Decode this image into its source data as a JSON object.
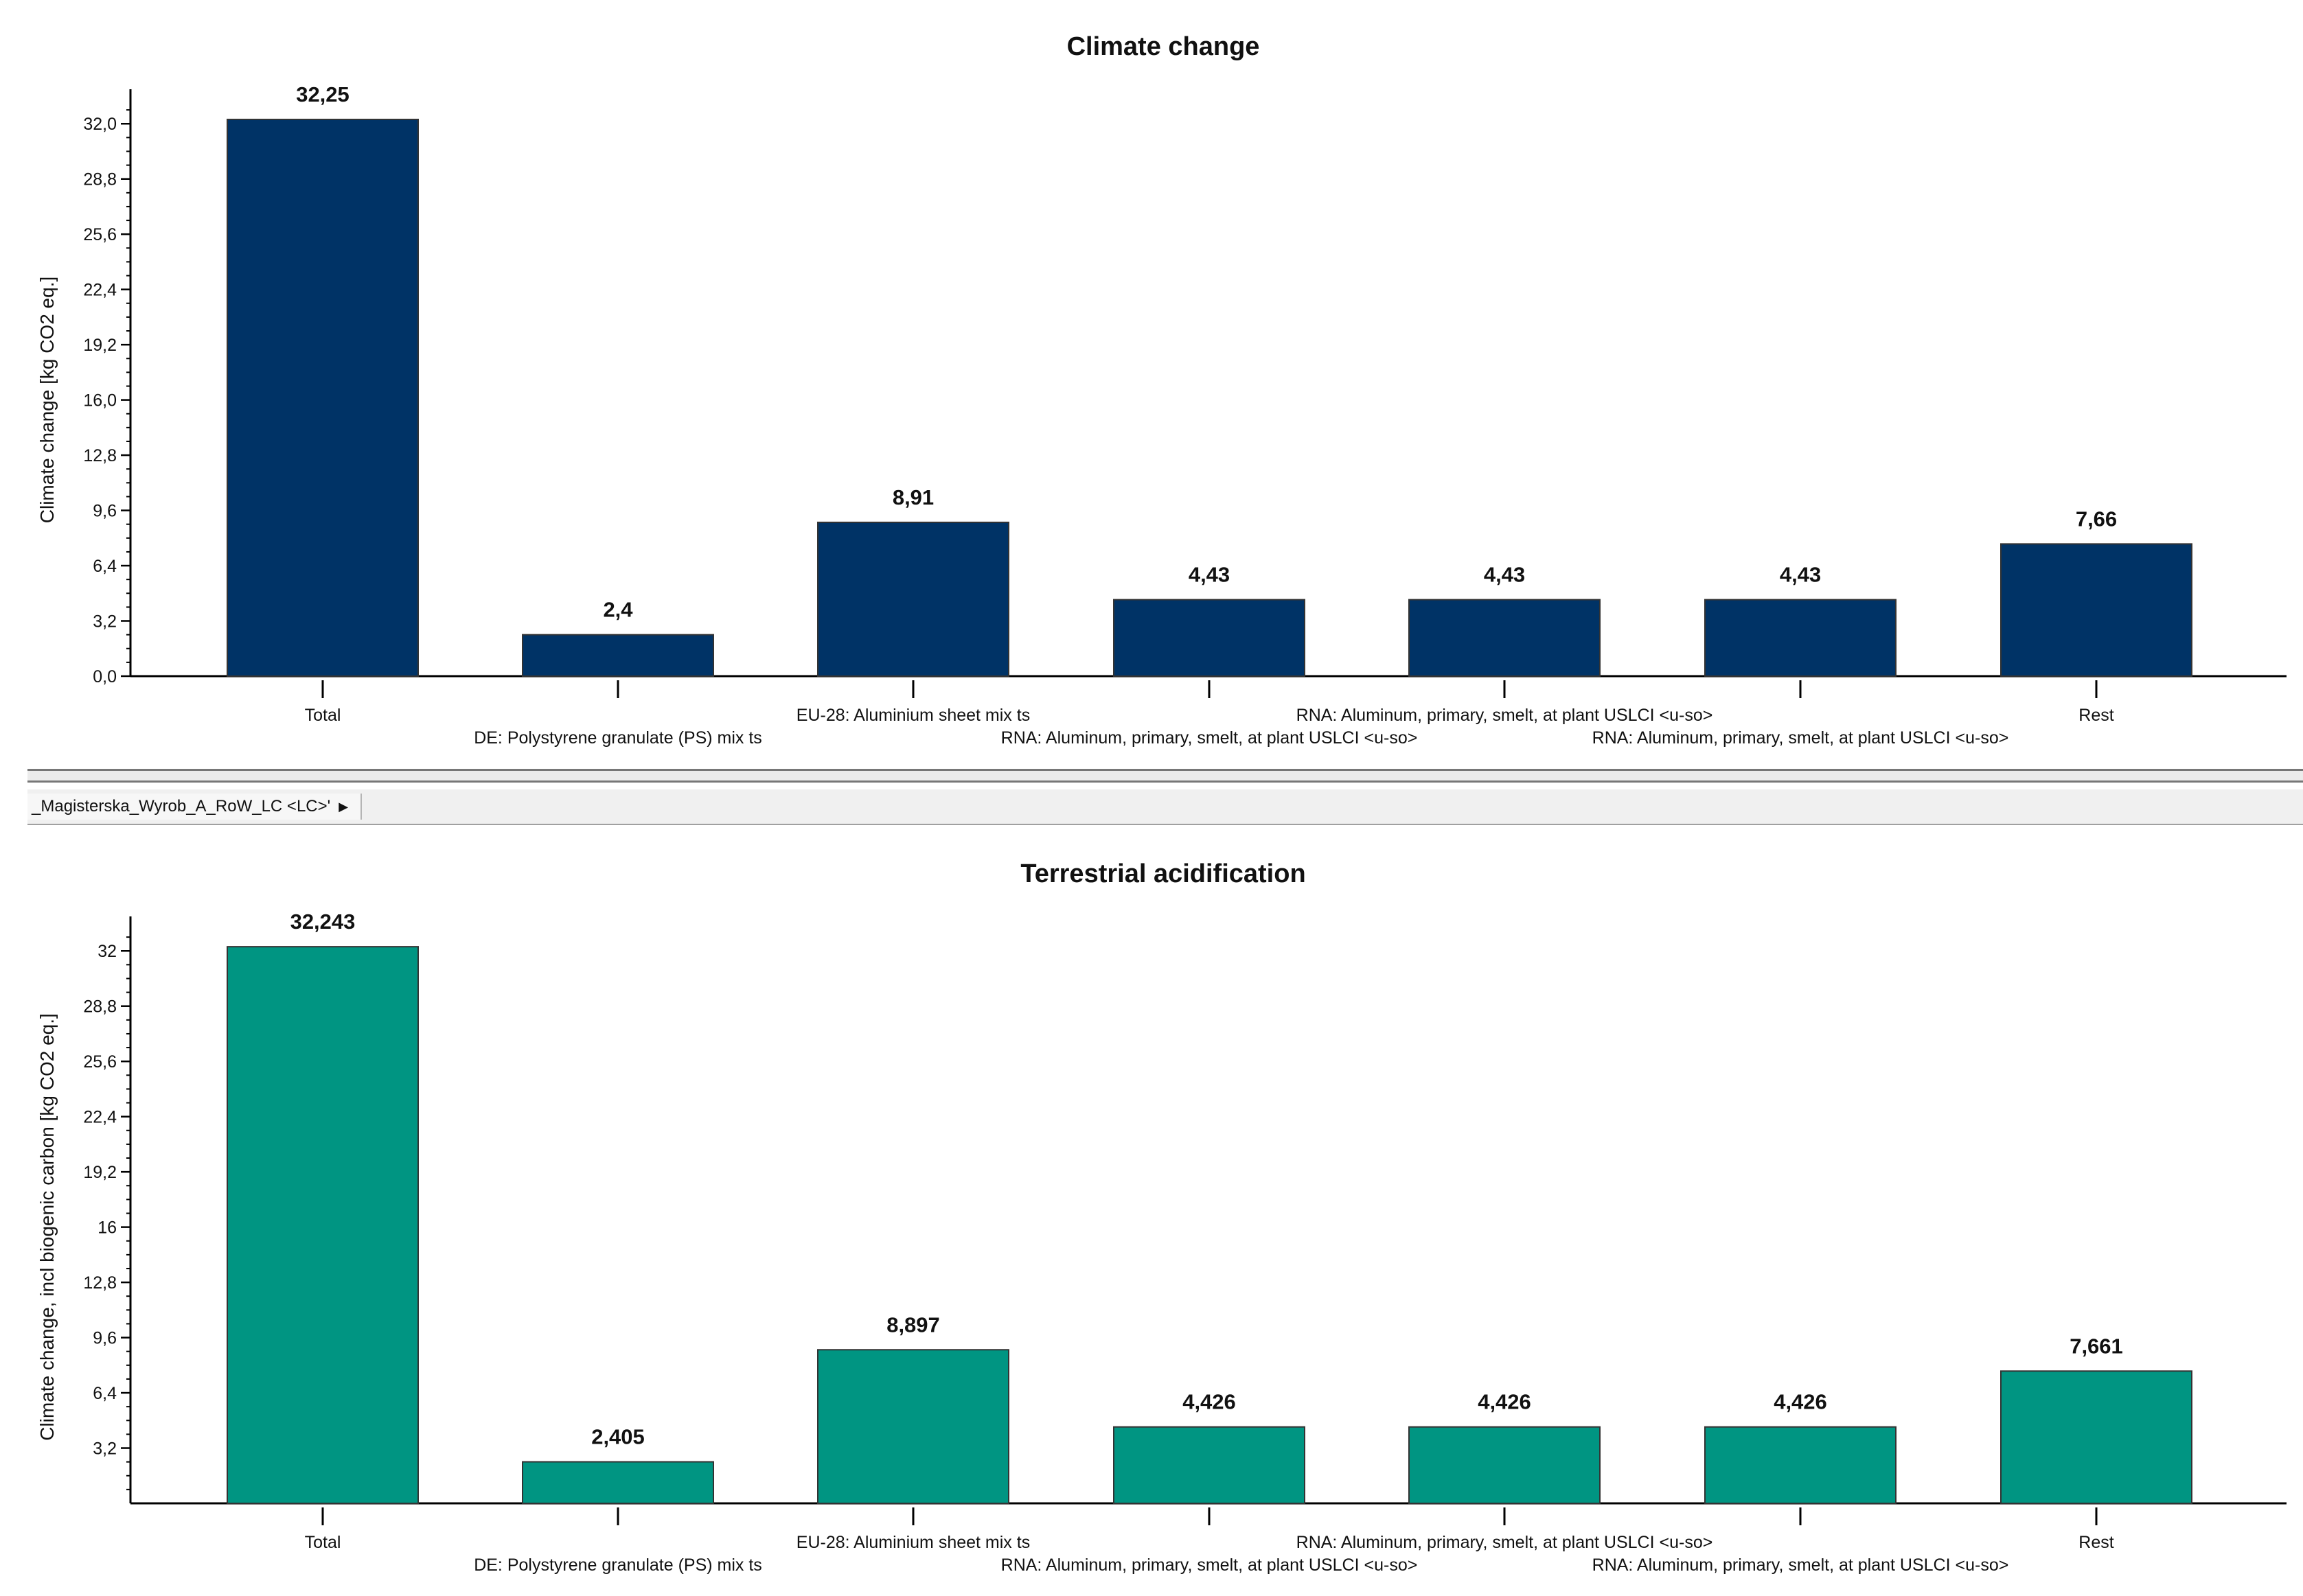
{
  "tab": {
    "label": "_Magisterska_Wyrob_A_RoW_LC <LC>'",
    "arrow_icon": "triangle-right-icon"
  },
  "chart_data": [
    {
      "type": "bar",
      "title": "Climate change",
      "ylabel": "Climate change [kg CO2 eq.]",
      "xlabel": "",
      "color": "#003366",
      "ylim": [
        0,
        33.6
      ],
      "yticks": [
        0,
        3.2,
        6.4,
        9.6,
        12.8,
        16,
        19.2,
        22.4,
        25.6,
        28.8,
        32
      ],
      "ytick_labels": [
        "0,0",
        "3,2",
        "6,4",
        "9,6",
        "12,8",
        "16,0",
        "19,2",
        "22,4",
        "25,6",
        "28,8",
        "32,0"
      ],
      "categories": [
        "Total",
        "DE: Polystyrene granulate (PS) mix ts",
        "EU-28: Aluminium sheet mix ts",
        "RNA: Aluminum, primary, smelt, at plant USLCI <u-so>",
        "RNA: Aluminum, primary, smelt, at plant USLCI <u-so>",
        "RNA: Aluminum, primary, smelt, at plant USLCI <u-so>",
        "Rest"
      ],
      "values": [
        32.25,
        2.4,
        8.91,
        4.43,
        4.43,
        4.43,
        7.66
      ],
      "value_labels": [
        "32,25",
        "2,4",
        "8,91",
        "4,43",
        "4,43",
        "4,43",
        "7,66"
      ]
    },
    {
      "type": "bar",
      "title": "Terrestrial acidification",
      "ylabel": "Climate change, incl biogenic carbon [kg CO2 eq.]",
      "xlabel": "",
      "color": "#009582",
      "ylim": [
        0,
        33.6
      ],
      "yticks": [
        3.2,
        6.4,
        9.6,
        12.8,
        16,
        19.2,
        22.4,
        25.6,
        28.8,
        32
      ],
      "ytick_labels": [
        "3,2",
        "6,4",
        "9,6",
        "12,8",
        "16",
        "19,2",
        "22,4",
        "25,6",
        "28,8",
        "32"
      ],
      "categories": [
        "Total",
        "DE: Polystyrene granulate (PS) mix ts",
        "EU-28: Aluminium sheet mix ts",
        "RNA: Aluminum, primary, smelt, at plant USLCI <u-so>",
        "RNA: Aluminum, primary, smelt, at plant USLCI <u-so>",
        "RNA: Aluminum, primary, smelt, at plant USLCI <u-so>",
        "Rest"
      ],
      "values": [
        32.243,
        2.405,
        8.897,
        4.426,
        4.426,
        4.426,
        7.661
      ],
      "value_labels": [
        "32,243",
        "2,405",
        "8,897",
        "4,426",
        "4,426",
        "4,426",
        "7,661"
      ]
    }
  ]
}
